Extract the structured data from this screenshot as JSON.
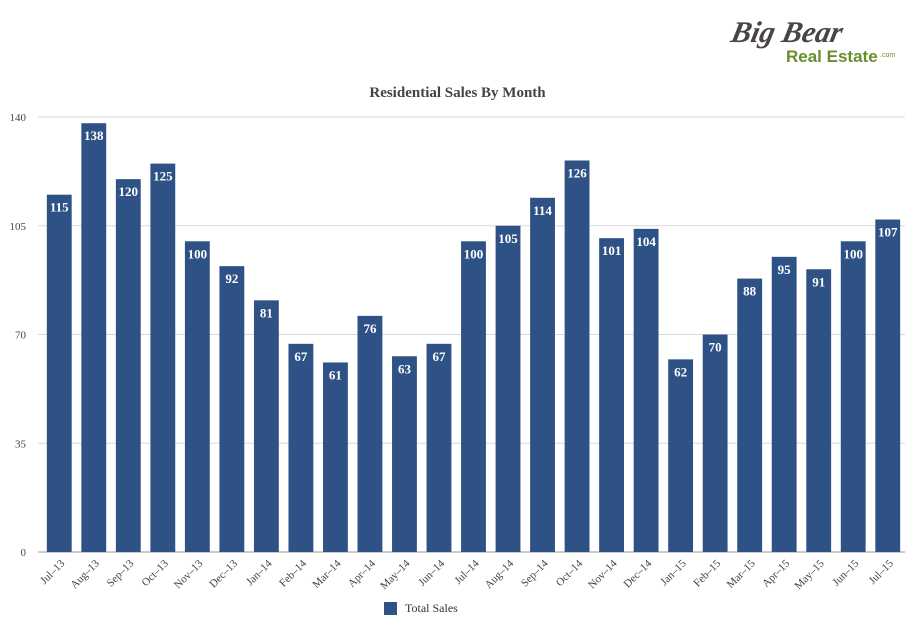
{
  "brand": {
    "logo_line1": "Big Bear",
    "logo_line2": "Real Estate",
    "logo_suffix": ".com",
    "logo_dark_color": "#4a4446",
    "logo_green_color": "#6a8e2c"
  },
  "colors": {
    "bar": "#2f5286",
    "bar_label": "#ffffff",
    "grid": "#d9d9d9",
    "axis_text": "#444444"
  },
  "chart_data": {
    "type": "bar",
    "title": "Residential Sales By Month",
    "xlabel": "",
    "ylabel": "",
    "ylim": [
      0,
      140
    ],
    "yticks": [
      0,
      35,
      70,
      105,
      140
    ],
    "grid": true,
    "legend_position": "bottom",
    "categories": [
      "Jul–13",
      "Aug–13",
      "Sep–13",
      "Oct–13",
      "Nov–13",
      "Dec–13",
      "Jan–14",
      "Feb–14",
      "Mar–14",
      "Apr–14",
      "May–14",
      "Jun–14",
      "Jul–14",
      "Aug–14",
      "Sep–14",
      "Oct–14",
      "Nov–14",
      "Dec–14",
      "Jan–15",
      "Feb–15",
      "Mar–15",
      "Apr–15",
      "May–15",
      "Jun–15",
      "Jul–15"
    ],
    "series": [
      {
        "name": "Total Sales",
        "values": [
          115,
          138,
          120,
          125,
          100,
          92,
          81,
          67,
          61,
          76,
          63,
          67,
          100,
          105,
          114,
          126,
          101,
          104,
          62,
          70,
          88,
          95,
          91,
          100,
          107
        ]
      }
    ]
  }
}
